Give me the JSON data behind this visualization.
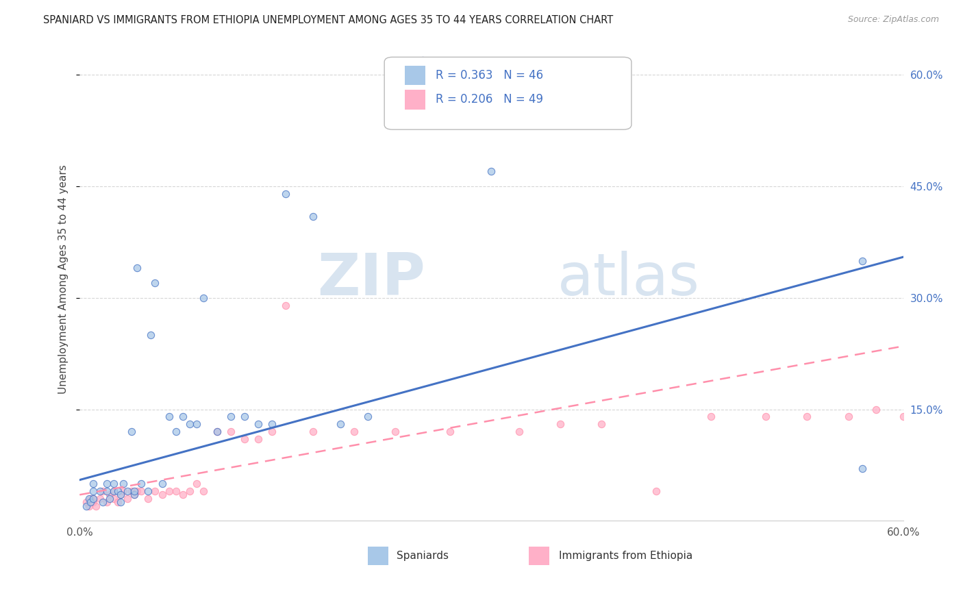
{
  "title": "SPANIARD VS IMMIGRANTS FROM ETHIOPIA UNEMPLOYMENT AMONG AGES 35 TO 44 YEARS CORRELATION CHART",
  "source": "Source: ZipAtlas.com",
  "ylabel": "Unemployment Among Ages 35 to 44 years",
  "xlim": [
    0.0,
    0.6
  ],
  "ylim": [
    0.0,
    0.65
  ],
  "ytick_labels": [
    "15.0%",
    "30.0%",
    "45.0%",
    "60.0%"
  ],
  "ytick_values": [
    0.15,
    0.3,
    0.45,
    0.6
  ],
  "xtick_labels": [
    "0.0%",
    "60.0%"
  ],
  "xtick_values": [
    0.0,
    0.6
  ],
  "legend_r1": "0.363",
  "legend_n1": "46",
  "legend_r2": "0.206",
  "legend_n2": "49",
  "color_blue": "#A8C8E8",
  "color_pink": "#FFB0C8",
  "color_blue_line": "#4472C4",
  "color_pink_line": "#FF8FAB",
  "color_blue_text": "#4472C4",
  "watermark_zip": "ZIP",
  "watermark_atlas": "atlas",
  "watermark_color": "#D8E4F0",
  "background_color": "#FFFFFF",
  "grid_color": "#CCCCCC",
  "spaniards_x": [
    0.005,
    0.007,
    0.008,
    0.01,
    0.01,
    0.01,
    0.015,
    0.017,
    0.02,
    0.02,
    0.022,
    0.025,
    0.025,
    0.028,
    0.03,
    0.03,
    0.032,
    0.035,
    0.038,
    0.04,
    0.04,
    0.042,
    0.045,
    0.05,
    0.052,
    0.055,
    0.06,
    0.065,
    0.07,
    0.075,
    0.08,
    0.085,
    0.09,
    0.1,
    0.11,
    0.12,
    0.13,
    0.14,
    0.15,
    0.17,
    0.19,
    0.21,
    0.25,
    0.3,
    0.57,
    0.57
  ],
  "spaniards_y": [
    0.02,
    0.03,
    0.025,
    0.03,
    0.04,
    0.05,
    0.04,
    0.025,
    0.04,
    0.05,
    0.03,
    0.04,
    0.05,
    0.04,
    0.025,
    0.035,
    0.05,
    0.04,
    0.12,
    0.035,
    0.04,
    0.34,
    0.05,
    0.04,
    0.25,
    0.32,
    0.05,
    0.14,
    0.12,
    0.14,
    0.13,
    0.13,
    0.3,
    0.12,
    0.14,
    0.14,
    0.13,
    0.13,
    0.44,
    0.41,
    0.13,
    0.14,
    0.62,
    0.47,
    0.35,
    0.07
  ],
  "ethiopia_x": [
    0.005,
    0.007,
    0.008,
    0.01,
    0.01,
    0.012,
    0.015,
    0.017,
    0.02,
    0.022,
    0.025,
    0.025,
    0.028,
    0.03,
    0.032,
    0.035,
    0.038,
    0.04,
    0.042,
    0.045,
    0.05,
    0.055,
    0.06,
    0.065,
    0.07,
    0.075,
    0.08,
    0.085,
    0.09,
    0.1,
    0.11,
    0.12,
    0.13,
    0.14,
    0.15,
    0.17,
    0.2,
    0.23,
    0.27,
    0.32,
    0.35,
    0.38,
    0.42,
    0.46,
    0.5,
    0.53,
    0.56,
    0.58,
    0.6
  ],
  "ethiopia_y": [
    0.025,
    0.02,
    0.03,
    0.03,
    0.025,
    0.02,
    0.03,
    0.04,
    0.025,
    0.035,
    0.03,
    0.04,
    0.025,
    0.035,
    0.04,
    0.03,
    0.04,
    0.035,
    0.04,
    0.04,
    0.03,
    0.04,
    0.035,
    0.04,
    0.04,
    0.035,
    0.04,
    0.05,
    0.04,
    0.12,
    0.12,
    0.11,
    0.11,
    0.12,
    0.29,
    0.12,
    0.12,
    0.12,
    0.12,
    0.12,
    0.13,
    0.13,
    0.04,
    0.14,
    0.14,
    0.14,
    0.14,
    0.15,
    0.14
  ],
  "blue_trend_x": [
    0.0,
    0.6
  ],
  "blue_trend_y": [
    0.055,
    0.355
  ],
  "pink_trend_x": [
    0.0,
    0.6
  ],
  "pink_trend_y": [
    0.035,
    0.235
  ]
}
